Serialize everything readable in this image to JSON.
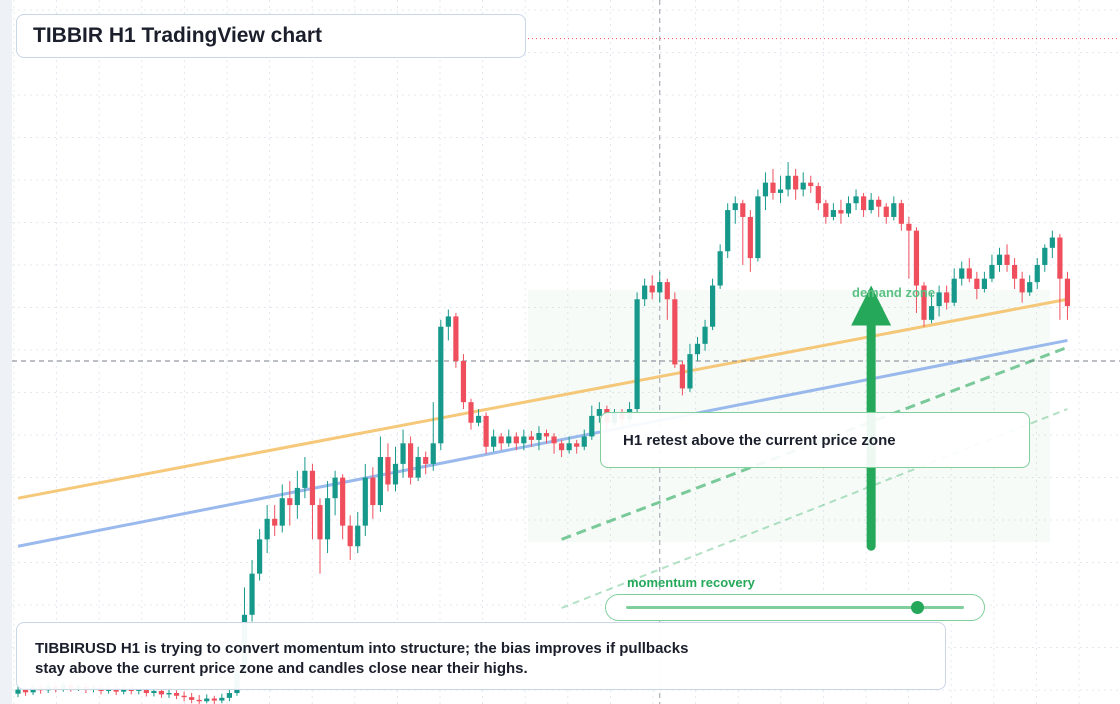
{
  "title": "TIBBIR H1 TradingView chart",
  "symbol": "TIBBIRUSD",
  "timeframe": "H1",
  "colors": {
    "up": "#16998a",
    "down": "#ef4f5d",
    "ema_fast": "#f5c26a",
    "ema_slow": "#8fb1ea",
    "zone": "#26a85a",
    "grid": "#e4e8ee"
  },
  "annotations": {
    "retest": "H1 retest above the current price zone",
    "demand_zone": "demand zone",
    "momentum_label": "momentum recovery",
    "momentum_level": 0.86,
    "summary_line1": "TIBBIRUSD H1 is trying to convert momentum into structure; the bias improves if pullbacks",
    "summary_line2": "stay above the current price zone and candles close near their highs."
  },
  "chart_data": {
    "type": "candlestick",
    "title": "TIBBIR H1 TradingView chart",
    "ylim": [
      0,
      100
    ],
    "grid": true,
    "overlays": [
      {
        "kind": "moving-average",
        "color": "#f5c26a",
        "start": [
          0,
          30
        ],
        "end": [
          139,
          59
        ]
      },
      {
        "kind": "moving-average",
        "color": "#8fb1ea",
        "start": [
          0,
          23
        ],
        "end": [
          139,
          53
        ]
      },
      {
        "kind": "trend-line-dashed",
        "color": "#26a85a",
        "start": [
          72,
          24
        ],
        "end": [
          139,
          52
        ]
      },
      {
        "kind": "trend-line-dashed-light",
        "color": "#26a85a",
        "start": [
          72,
          14
        ],
        "end": [
          139,
          43
        ]
      },
      {
        "kind": "arrow-up",
        "color": "#26a85a",
        "from": [
          113,
          23
        ],
        "to": [
          113,
          61
        ]
      },
      {
        "kind": "current-price-line",
        "value": 50
      }
    ],
    "candles": [
      [
        1.5,
        2.1,
        2.6,
        1.0
      ],
      [
        2.1,
        1.7,
        2.8,
        1.2
      ],
      [
        1.7,
        2.4,
        2.9,
        1.3
      ],
      [
        2.4,
        2.0,
        2.9,
        1.5
      ],
      [
        2.0,
        2.6,
        3.1,
        1.6
      ],
      [
        2.6,
        2.2,
        3.2,
        1.7
      ],
      [
        2.2,
        2.8,
        3.3,
        1.8
      ],
      [
        2.8,
        2.3,
        3.3,
        1.8
      ],
      [
        2.3,
        2.5,
        3.0,
        1.9
      ],
      [
        2.5,
        2.1,
        3.0,
        1.6
      ],
      [
        2.1,
        2.4,
        3.0,
        1.7
      ],
      [
        2.4,
        1.9,
        2.9,
        1.4
      ],
      [
        1.9,
        2.2,
        2.8,
        1.5
      ],
      [
        2.2,
        1.8,
        2.7,
        1.3
      ],
      [
        1.8,
        2.3,
        2.8,
        1.4
      ],
      [
        2.3,
        1.9,
        2.7,
        1.4
      ],
      [
        1.9,
        2.1,
        2.5,
        1.4
      ],
      [
        2.1,
        1.6,
        2.5,
        1.1
      ],
      [
        1.6,
        1.9,
        2.3,
        1.1
      ],
      [
        1.9,
        1.4,
        2.2,
        0.9
      ],
      [
        1.4,
        1.6,
        2.1,
        0.9
      ],
      [
        1.6,
        1.2,
        2.0,
        0.7
      ],
      [
        1.2,
        1.0,
        1.8,
        0.4
      ],
      [
        1.0,
        0.6,
        1.6,
        0.1
      ],
      [
        0.6,
        0.4,
        1.3,
        0.0
      ],
      [
        0.4,
        0.8,
        1.4,
        0.1
      ],
      [
        0.8,
        0.5,
        1.2,
        0.0
      ],
      [
        0.5,
        0.9,
        1.5,
        0.1
      ],
      [
        0.9,
        1.6,
        2.2,
        0.4
      ],
      [
        1.6,
        4.5,
        6.8,
        1.2
      ],
      [
        4.5,
        13.0,
        17.0,
        4.0
      ],
      [
        13.0,
        19.0,
        21.0,
        12.0
      ],
      [
        19.0,
        24.0,
        25.5,
        18.0
      ],
      [
        24.0,
        27.0,
        29.0,
        22.0
      ],
      [
        27.0,
        26.0,
        29.0,
        24.5
      ],
      [
        26.0,
        30.0,
        32.0,
        25.0
      ],
      [
        30.0,
        29.0,
        32.5,
        26.0
      ],
      [
        29.0,
        31.5,
        34.0,
        27.0
      ],
      [
        31.5,
        34.0,
        36.0,
        30.0
      ],
      [
        34.0,
        29.0,
        35.0,
        24.0
      ],
      [
        29.0,
        24.0,
        30.0,
        19.0
      ],
      [
        24.0,
        30.0,
        32.5,
        22.0
      ],
      [
        30.0,
        33.0,
        34.0,
        27.5
      ],
      [
        33.0,
        26.0,
        33.5,
        24.0
      ],
      [
        26.0,
        23.0,
        27.5,
        21.0
      ],
      [
        23.0,
        26.0,
        28.0,
        22.0
      ],
      [
        26.0,
        33.0,
        35.0,
        24.5
      ],
      [
        33.0,
        29.0,
        34.5,
        27.0
      ],
      [
        29.0,
        36.0,
        39.0,
        28.0
      ],
      [
        36.0,
        32.0,
        38.0,
        31.0
      ],
      [
        32.0,
        35.0,
        37.5,
        31.0
      ],
      [
        35.0,
        38.0,
        40.0,
        33.0
      ],
      [
        38.0,
        33.0,
        39.0,
        32.0
      ],
      [
        33.0,
        36.0,
        37.5,
        32.5
      ],
      [
        36.0,
        35.0,
        36.8,
        33.5
      ],
      [
        35.0,
        38.0,
        44.0,
        34.0
      ],
      [
        38.0,
        55.0,
        56.0,
        37.0
      ],
      [
        55.0,
        56.5,
        57.5,
        53.0
      ],
      [
        56.5,
        50.0,
        57.0,
        49.0
      ],
      [
        50.0,
        44.0,
        51.0,
        43.0
      ],
      [
        44.0,
        41.0,
        44.5,
        40.0
      ],
      [
        41.0,
        42.0,
        43.0,
        40.5
      ],
      [
        42.0,
        37.5,
        42.5,
        36.5
      ],
      [
        37.5,
        39.0,
        40.0,
        36.8
      ],
      [
        39.0,
        38.0,
        39.5,
        37.0
      ],
      [
        38.0,
        39.0,
        40.0,
        37.5
      ],
      [
        39.0,
        38.0,
        39.6,
        37.0
      ],
      [
        38.0,
        39.0,
        40.0,
        37.0
      ],
      [
        39.0,
        38.5,
        39.8,
        37.5
      ],
      [
        38.5,
        39.5,
        40.5,
        37.0
      ],
      [
        39.5,
        39.0,
        40.0,
        38.0
      ],
      [
        39.0,
        38.0,
        39.5,
        36.5
      ],
      [
        38.0,
        37.0,
        38.5,
        36.0
      ],
      [
        37.0,
        38.0,
        39.0,
        36.5
      ],
      [
        38.0,
        37.5,
        38.5,
        36.5
      ],
      [
        37.5,
        39.0,
        40.0,
        37.0
      ],
      [
        39.0,
        42.0,
        43.5,
        38.5
      ],
      [
        42.0,
        43.0,
        44.0,
        41.0
      ],
      [
        43.0,
        41.0,
        43.5,
        40.0
      ],
      [
        41.0,
        42.5,
        43.0,
        40.5
      ],
      [
        42.5,
        41.5,
        43.0,
        40.5
      ],
      [
        41.5,
        43.0,
        44.0,
        41.0
      ],
      [
        43.0,
        59.0,
        60.0,
        42.5
      ],
      [
        59.0,
        61.0,
        62.0,
        58.0
      ],
      [
        61.0,
        60.0,
        62.5,
        59.0
      ],
      [
        60.0,
        61.5,
        63.0,
        58.5
      ],
      [
        61.5,
        59.0,
        62.0,
        56.0
      ],
      [
        59.0,
        49.5,
        60.0,
        49.0
      ],
      [
        49.5,
        46.0,
        50.0,
        45.0
      ],
      [
        46.0,
        51.0,
        52.5,
        45.5
      ],
      [
        51.0,
        52.5,
        53.5,
        50.0
      ],
      [
        52.5,
        55.0,
        56.0,
        51.5
      ],
      [
        55.0,
        61.0,
        62.0,
        54.5
      ],
      [
        61.0,
        66.0,
        67.0,
        60.5
      ],
      [
        66.0,
        72.0,
        73.0,
        65.0
      ],
      [
        72.0,
        73.0,
        74.0,
        70.0
      ],
      [
        73.0,
        71.0,
        73.5,
        64.0
      ],
      [
        71.0,
        65.0,
        72.0,
        63.0
      ],
      [
        65.0,
        74.0,
        75.0,
        64.5
      ],
      [
        74.0,
        76.0,
        77.5,
        72.0
      ],
      [
        76.0,
        74.5,
        78.0,
        73.5
      ],
      [
        74.5,
        75.0,
        77.0,
        73.0
      ],
      [
        75.0,
        77.0,
        79.0,
        74.0
      ],
      [
        77.0,
        75.0,
        78.0,
        73.5
      ],
      [
        75.0,
        76.0,
        77.5,
        74.0
      ],
      [
        76.0,
        75.5,
        77.0,
        74.5
      ],
      [
        75.5,
        73.0,
        76.0,
        72.0
      ],
      [
        73.0,
        71.0,
        73.5,
        70.0
      ],
      [
        71.0,
        72.0,
        73.0,
        70.5
      ],
      [
        72.0,
        71.5,
        73.5,
        70.0
      ],
      [
        71.5,
        73.0,
        74.0,
        71.0
      ],
      [
        73.0,
        74.0,
        75.0,
        72.0
      ],
      [
        74.0,
        72.0,
        74.5,
        71.0
      ],
      [
        72.0,
        73.5,
        74.5,
        71.5
      ],
      [
        73.5,
        72.5,
        74.0,
        71.0
      ],
      [
        72.5,
        71.0,
        73.0,
        70.0
      ],
      [
        71.0,
        73.0,
        74.0,
        70.5
      ],
      [
        73.0,
        70.0,
        73.5,
        69.0
      ],
      [
        70.0,
        69.0,
        71.0,
        62.0
      ],
      [
        69.0,
        61.0,
        69.5,
        57.0
      ],
      [
        61.0,
        56.0,
        61.5,
        55.0
      ],
      [
        56.0,
        58.0,
        60.0,
        55.5
      ],
      [
        58.0,
        60.0,
        61.0,
        56.5
      ],
      [
        60.0,
        58.5,
        61.0,
        57.5
      ],
      [
        58.5,
        62.0,
        63.5,
        58.0
      ],
      [
        62.0,
        63.5,
        64.5,
        61.0
      ],
      [
        63.5,
        62.0,
        65.0,
        61.5
      ],
      [
        62.0,
        60.5,
        63.0,
        59.0
      ],
      [
        60.5,
        62.0,
        63.0,
        60.0
      ],
      [
        62.0,
        64.0,
        65.5,
        61.5
      ],
      [
        64.0,
        65.5,
        66.5,
        63.0
      ],
      [
        65.5,
        64.0,
        67.0,
        63.0
      ],
      [
        64.0,
        62.0,
        65.0,
        60.5
      ],
      [
        62.0,
        60.0,
        63.0,
        58.5
      ],
      [
        60.0,
        61.5,
        62.5,
        59.5
      ],
      [
        61.5,
        64.0,
        65.0,
        60.5
      ],
      [
        64.0,
        66.5,
        67.0,
        63.0
      ],
      [
        66.5,
        68.0,
        69.0,
        65.0
      ],
      [
        68.0,
        62.0,
        68.5,
        56.0
      ],
      [
        62.0,
        58.0,
        63.0,
        56.0
      ]
    ]
  }
}
